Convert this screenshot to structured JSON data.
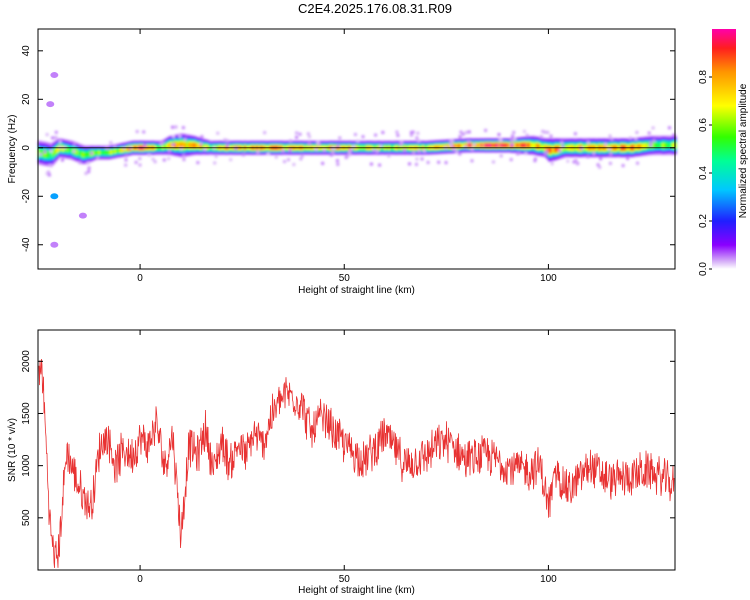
{
  "title": "C2E4.2025.176.08.31.R09",
  "chart_data": [
    {
      "type": "heatmap",
      "xlabel": "Height of straight line (km)",
      "ylabel": "Frequency (Hz)",
      "xlim": [
        -25,
        131
      ],
      "ylim": [
        -50,
        49
      ],
      "xticks": [
        0,
        50,
        100
      ],
      "yticks": [
        -40,
        -20,
        0,
        20,
        40
      ],
      "colorbar": {
        "label": "Normalized spectral amplitude",
        "range": [
          0,
          1
        ],
        "ticks": [
          0.0,
          0.2,
          0.4,
          0.6,
          0.8
        ],
        "tick_labels": [
          "0.0",
          "0.2",
          "0.4",
          "0.6",
          "0.8"
        ]
      },
      "grid": false,
      "ridge": {
        "x": [
          -25,
          -22,
          -20,
          -17,
          -14,
          -11,
          -8,
          -5,
          -2,
          0,
          5,
          7,
          10,
          13,
          17,
          20,
          30,
          40,
          50,
          60,
          70,
          80,
          90,
          96,
          99,
          100,
          104,
          110,
          115,
          120,
          125,
          131
        ],
        "freq": [
          -2,
          -3,
          0,
          -1,
          -3,
          -2,
          -2,
          -1,
          0,
          0,
          0,
          1,
          1,
          1,
          0,
          0,
          0,
          0,
          0,
          0,
          0,
          1,
          1,
          1,
          0,
          -1,
          0,
          0,
          0,
          0,
          1,
          1
        ],
        "halfwidth": [
          5,
          5,
          4,
          4,
          4,
          3,
          3,
          3,
          3,
          3,
          3,
          4,
          5,
          4,
          3,
          3,
          3,
          3,
          3,
          3,
          3,
          3,
          3,
          4,
          4,
          5,
          4,
          4,
          4,
          4,
          4,
          4
        ],
        "peak": [
          0.6,
          0.5,
          0.7,
          0.55,
          0.6,
          0.6,
          0.6,
          0.65,
          0.9,
          1.0,
          0.6,
          0.85,
          0.75,
          0.85,
          0.6,
          0.75,
          0.85,
          0.75,
          0.8,
          0.65,
          0.75,
          0.85,
          0.95,
          0.8,
          0.7,
          0.85,
          0.75,
          0.8,
          0.8,
          0.85,
          0.6,
          0.6
        ]
      },
      "isolated_spots": [
        {
          "x": -21,
          "freq": -20,
          "amp": 0.3
        },
        {
          "x": -21,
          "freq": -40,
          "amp": 0.05
        },
        {
          "x": -21,
          "freq": 30,
          "amp": 0.05
        },
        {
          "x": -14,
          "freq": -28,
          "amp": 0.05
        },
        {
          "x": -22,
          "freq": 18,
          "amp": 0.05
        }
      ]
    },
    {
      "type": "line",
      "xlabel": "Height of straight line (km)",
      "ylabel": "SNR (10 * v/v)",
      "xlim": [
        -25,
        131
      ],
      "ylim": [
        0,
        2300
      ],
      "xticks": [
        0,
        50,
        100
      ],
      "yticks": [
        500,
        1000,
        1500,
        2000
      ],
      "grid": false,
      "series": [
        {
          "color": "#e83232",
          "x": [
            -25,
            -24,
            -23,
            -22,
            -21,
            -20,
            -18,
            -16,
            -14,
            -12,
            -10,
            -8,
            -6,
            -4,
            -2,
            0,
            2,
            4,
            6,
            8,
            10,
            12,
            14,
            16,
            18,
            20,
            22,
            24,
            26,
            28,
            30,
            32,
            34,
            36,
            38,
            40,
            42,
            44,
            46,
            48,
            50,
            55,
            60,
            65,
            70,
            75,
            80,
            85,
            90,
            95,
            98,
            100,
            102,
            105,
            110,
            115,
            120,
            125,
            131
          ],
          "y": [
            1800,
            1950,
            1200,
            400,
            120,
            150,
            1150,
            900,
            700,
            600,
            1150,
            1300,
            1000,
            1150,
            1100,
            1250,
            1200,
            1400,
            1000,
            1300,
            320,
            1200,
            1100,
            1350,
            950,
            1250,
            1000,
            1200,
            1100,
            1300,
            1200,
            1450,
            1600,
            1700,
            1650,
            1550,
            1300,
            1450,
            1400,
            1300,
            1200,
            1050,
            1300,
            1000,
            1100,
            1250,
            1050,
            1100,
            1000,
            950,
            1000,
            600,
            950,
            750,
            1000,
            850,
            900,
            950,
            800
          ],
          "noise": 220
        }
      ]
    }
  ]
}
